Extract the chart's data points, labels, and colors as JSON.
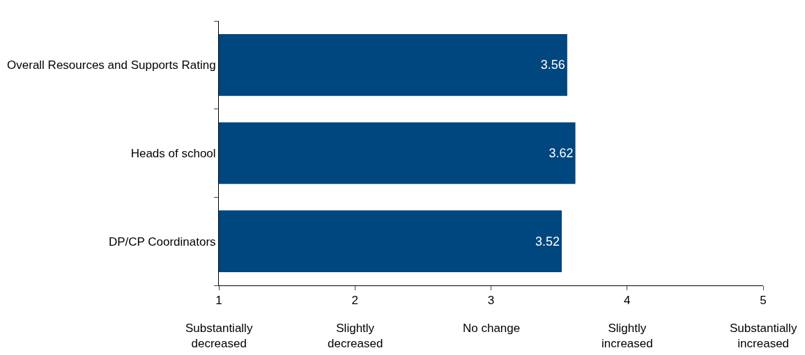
{
  "chart_data": {
    "type": "bar",
    "orientation": "horizontal",
    "categories": [
      "Overall Resources and Supports Rating",
      "Heads of school",
      "DP/CP Coordinators"
    ],
    "values": [
      3.56,
      3.62,
      3.52
    ],
    "color": "#00467f",
    "data_labels": true,
    "xlim": [
      1,
      5
    ],
    "xticks": [
      1,
      2,
      3,
      4,
      5
    ],
    "annotations": [
      "Substantially\ndecreased",
      "Slightly\ndecreased",
      "No change",
      "Slightly\nincreased",
      "Substantially\nincreased"
    ]
  }
}
